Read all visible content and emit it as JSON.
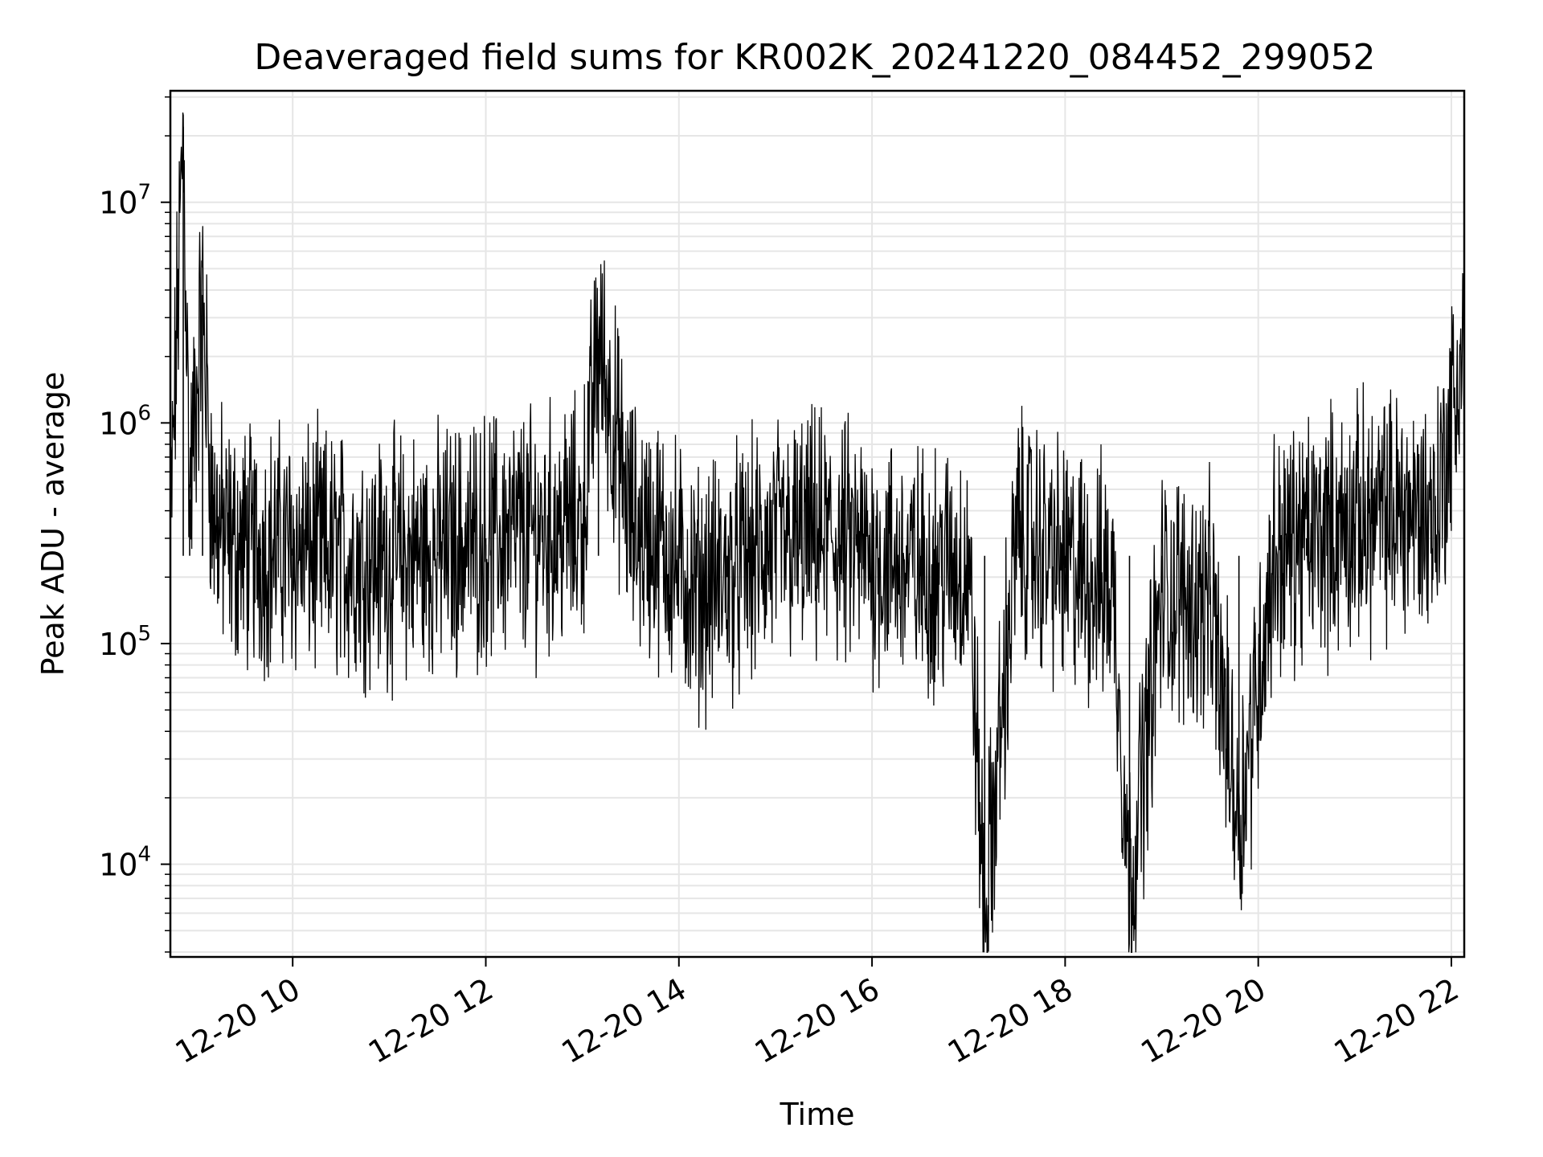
{
  "chart_data": {
    "type": "line",
    "title": "Deaveraged field sums for KR002K_20241220_084452_299052",
    "xlabel": "Time",
    "ylabel": "Peak ADU - average",
    "y_scale": "log",
    "ylim": [
      3800,
      32000000
    ],
    "xlim": [
      "2024-12-20 08:44",
      "2024-12-20 22:08"
    ],
    "grid": true,
    "grid_minor": true,
    "line_color": "#000000",
    "grid_color": "#e6e6e6",
    "x_ticks": [
      {
        "value": "2024-12-20 10:00",
        "label": "12-20 10"
      },
      {
        "value": "2024-12-20 12:00",
        "label": "12-20 12"
      },
      {
        "value": "2024-12-20 14:00",
        "label": "12-20 14"
      },
      {
        "value": "2024-12-20 16:00",
        "label": "12-20 16"
      },
      {
        "value": "2024-12-20 18:00",
        "label": "12-20 18"
      },
      {
        "value": "2024-12-20 20:00",
        "label": "12-20 20"
      },
      {
        "value": "2024-12-20 22:00",
        "label": "12-20 22"
      }
    ],
    "y_ticks": [
      {
        "value": 10000,
        "base": "10",
        "exp": "4"
      },
      {
        "value": 100000,
        "base": "10",
        "exp": "5"
      },
      {
        "value": 1000000,
        "base": "10",
        "exp": "6"
      },
      {
        "value": 10000000,
        "base": "10",
        "exp": "7"
      }
    ],
    "series": [
      {
        "x": [
          "2024-12-20 08:44",
          "2024-12-20 08:52",
          "2024-12-20 08:56",
          "2024-12-20 09:04",
          "2024-12-20 09:10",
          "2024-12-20 09:20",
          "2024-12-20 09:40",
          "2024-12-20 10:00",
          "2024-12-20 10:30",
          "2024-12-20 11:00",
          "2024-12-20 11:30",
          "2024-12-20 12:00",
          "2024-12-20 12:30",
          "2024-12-20 13:00",
          "2024-12-20 13:10",
          "2024-12-20 13:30",
          "2024-12-20 13:50",
          "2024-12-20 14:10",
          "2024-12-20 14:30",
          "2024-12-20 15:00",
          "2024-12-20 15:30",
          "2024-12-20 16:00",
          "2024-12-20 16:30",
          "2024-12-20 17:00",
          "2024-12-20 17:10",
          "2024-12-20 17:30",
          "2024-12-20 18:00",
          "2024-12-20 18:30",
          "2024-12-20 18:40",
          "2024-12-20 19:00",
          "2024-12-20 19:30",
          "2024-12-20 19:48",
          "2024-12-20 20:10",
          "2024-12-20 20:30",
          "2024-12-20 21:00",
          "2024-12-20 21:30",
          "2024-12-20 21:50",
          "2024-12-20 22:08"
        ],
        "y": [
          300000,
          22000000,
          450000,
          3800000,
          400000,
          280000,
          270000,
          270000,
          250000,
          240000,
          260000,
          300000,
          320000,
          350000,
          2400000,
          350000,
          280000,
          170000,
          200000,
          280000,
          300000,
          250000,
          210000,
          230000,
          5500,
          320000,
          220000,
          180000,
          7500,
          170000,
          150000,
          16000,
          250000,
          300000,
          350000,
          400000,
          380000,
          2300000
        ]
      }
    ]
  }
}
